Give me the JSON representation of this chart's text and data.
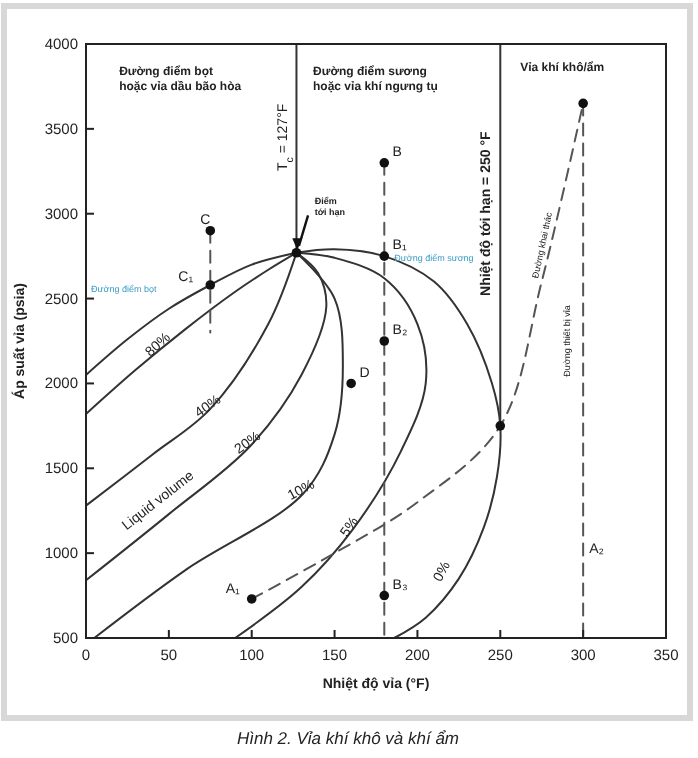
{
  "chart_data": {
    "type": "line",
    "xlabel": "Nhiệt độ vỉa (°F)",
    "ylabel": "Áp suất vỉa (psia)",
    "xlim": [
      0,
      350
    ],
    "xticks": [
      0,
      50,
      100,
      150,
      200,
      250,
      300,
      350
    ],
    "ylim": [
      500,
      4000
    ],
    "yticks": [
      500,
      1000,
      1500,
      2000,
      2500,
      3000,
      3500,
      4000
    ],
    "grid": false,
    "marker": "none",
    "series": [
      {
        "color": "#333333",
        "line_style": "solid",
        "x": [
          0,
          25,
          50,
          75,
          100,
          127
        ],
        "values": [
          2050,
          2260,
          2440,
          2580,
          2700,
          2770
        ]
      },
      {
        "color": "#333333",
        "line_style": "solid",
        "x": [
          127,
          150,
          180,
          210,
          230,
          245,
          250,
          248,
          240,
          225,
          205,
          186
        ],
        "values": [
          2770,
          2790,
          2750,
          2600,
          2350,
          2000,
          1750,
          1450,
          1150,
          850,
          620,
          500
        ]
      },
      {
        "color": "#333333",
        "line_style": "solid",
        "x": [
          0,
          30,
          60,
          90,
          110,
          127
        ],
        "values": [
          1820,
          2080,
          2320,
          2540,
          2670,
          2770
        ]
      },
      {
        "color": "#333333",
        "line_style": "solid",
        "x": [
          0,
          40,
          75,
          110,
          127
        ],
        "values": [
          1280,
          1580,
          1850,
          2350,
          2770
        ]
      },
      {
        "color": "#333333",
        "line_style": "solid",
        "x": [
          0,
          50,
          99,
          130,
          145,
          140,
          127
        ],
        "values": [
          840,
          1230,
          1630,
          2050,
          2450,
          2650,
          2770
        ]
      },
      {
        "color": "#333333",
        "line_style": "solid",
        "x": [
          5,
          60,
          131,
          150,
          155,
          150,
          127
        ],
        "values": [
          500,
          900,
          1350,
          1700,
          2100,
          2500,
          2770
        ]
      },
      {
        "color": "#333333",
        "line_style": "solid",
        "x": [
          90,
          130,
          161,
          190,
          205,
          200,
          180,
          150,
          127
        ],
        "values": [
          500,
          800,
          1140,
          1600,
          2000,
          2350,
          2620,
          2740,
          2770
        ]
      },
      {
        "color": "#333333",
        "line_style": "solid",
        "x": [
          127,
          127
        ],
        "values": [
          2770,
          4000
        ]
      },
      {
        "color": "#333333",
        "line_style": "solid",
        "x": [
          250,
          250
        ],
        "values": [
          1750,
          4000
        ]
      },
      {
        "color": "#555555",
        "line_style": "dashed",
        "x": [
          75,
          75
        ],
        "values": [
          2900,
          2300
        ]
      },
      {
        "color": "#555555",
        "line_style": "dashed",
        "x": [
          180,
          180
        ],
        "values": [
          3300,
          500
        ]
      },
      {
        "color": "#555555",
        "line_style": "dashed",
        "x": [
          100,
          150,
          200,
          250,
          275,
          300
        ],
        "values": [
          730,
          1000,
          1300,
          1750,
          2600,
          3650
        ]
      },
      {
        "color": "#555555",
        "line_style": "dashed",
        "x": [
          300,
          300,
          300
        ],
        "values": [
          3650,
          2000,
          500
        ]
      },
      {
        "type": "scatter",
        "marker": "circle",
        "color": "#111111",
        "x": [
          75,
          75,
          127,
          180,
          180,
          180,
          180,
          160,
          100,
          300,
          250
        ],
        "values": [
          2900,
          2580,
          2770,
          3300,
          2750,
          2250,
          750,
          2000,
          730,
          3650,
          1750
        ]
      }
    ],
    "annotations": [
      "Đường điểm bọt\nhoặc vỉa dầu bão hòa",
      "Đường điểm sương\nhoặc vỉa khí ngưng tụ",
      "Vỉa khí khô/ẩm",
      "Điểm\ntới hạn",
      "Đường điểm bọt",
      {
        "text": "Đường điểm sương",
        "x": 186,
        "y": 2720
      },
      {
        "text": "80%",
        "x": 45,
        "y": 2210
      },
      {
        "text": "40%",
        "x": 75,
        "y": 1845
      },
      {
        "text": "20%",
        "x": 99,
        "y": 1630
      },
      {
        "text": "10%",
        "x": 131,
        "y": 1350
      },
      {
        "text": "5%",
        "x": 161,
        "y": 1140
      },
      "0%",
      "Liquid volume",
      {
        "text": "T$_{c}$ = 127°F",
        "x": 121,
        "y": 3450
      },
      {
        "text": "Nhiệt độ tới hạn = 250 °F",
        "x": 244,
        "y": 3000
      },
      {
        "text": "Đường khai thác",
        "x": 277,
        "y": 2810
      },
      "Đường thiết bị vỉa",
      {
        "text": "C",
        "x": 69,
        "y": 2940
      },
      {
        "text": "C₁",
        "x": 75,
        "y": 2580
      },
      {
        "text": "B",
        "x": 185,
        "y": 3340
      },
      {
        "text": "B₁",
        "x": 185,
        "y": 2790
      },
      {
        "text": "B₂",
        "x": 185,
        "y": 2290
      },
      {
        "text": "B₃",
        "x": 185,
        "y": 790
      },
      {
        "text": "D",
        "x": 165,
        "y": 2040
      },
      {
        "text": "A₁",
        "x": 100,
        "y": 730
      },
      {
        "text": "A₂",
        "x": 300,
        "y": 1000
      },
      "Hình 2. Vỉa khí khô và khí ẩm"
    ]
  }
}
